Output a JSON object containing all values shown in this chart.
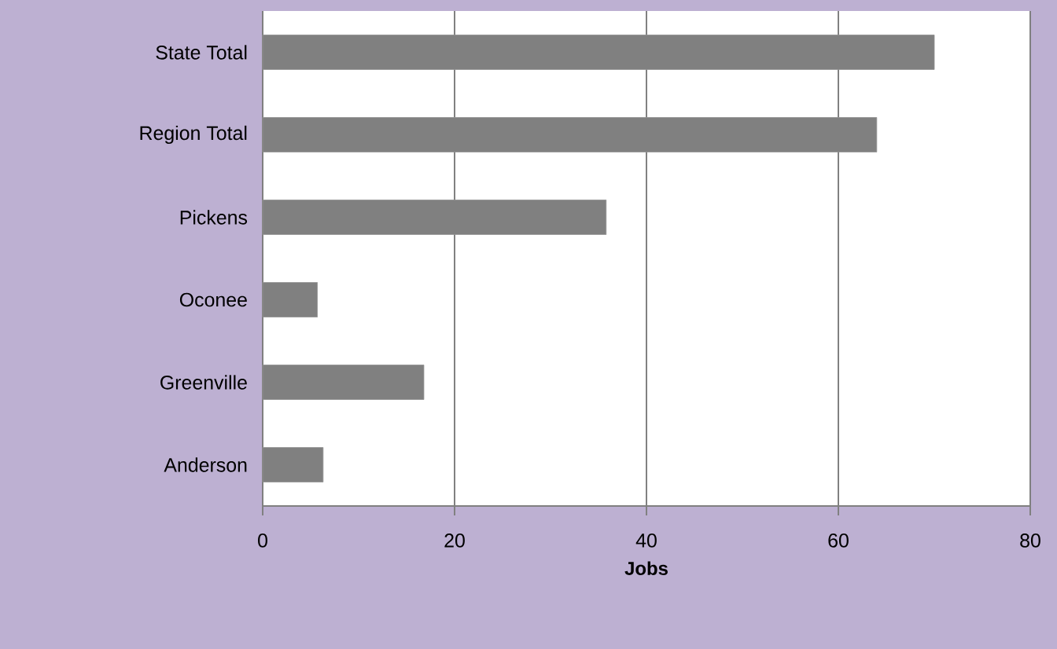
{
  "chart_data": {
    "type": "bar",
    "orientation": "horizontal",
    "xlabel": "**Jobs**",
    "categories": [
      "State Total",
      "Region Total",
      "Pickens",
      "Oconee",
      "Greenville",
      "Anderson"
    ],
    "values": [
      70,
      64,
      35.8,
      5.7,
      16.8,
      6.3
    ],
    "color": "#808080",
    "xlim": [
      0,
      80
    ],
    "xticks": [
      0,
      20,
      40,
      60,
      80
    ],
    "grid": "x"
  }
}
